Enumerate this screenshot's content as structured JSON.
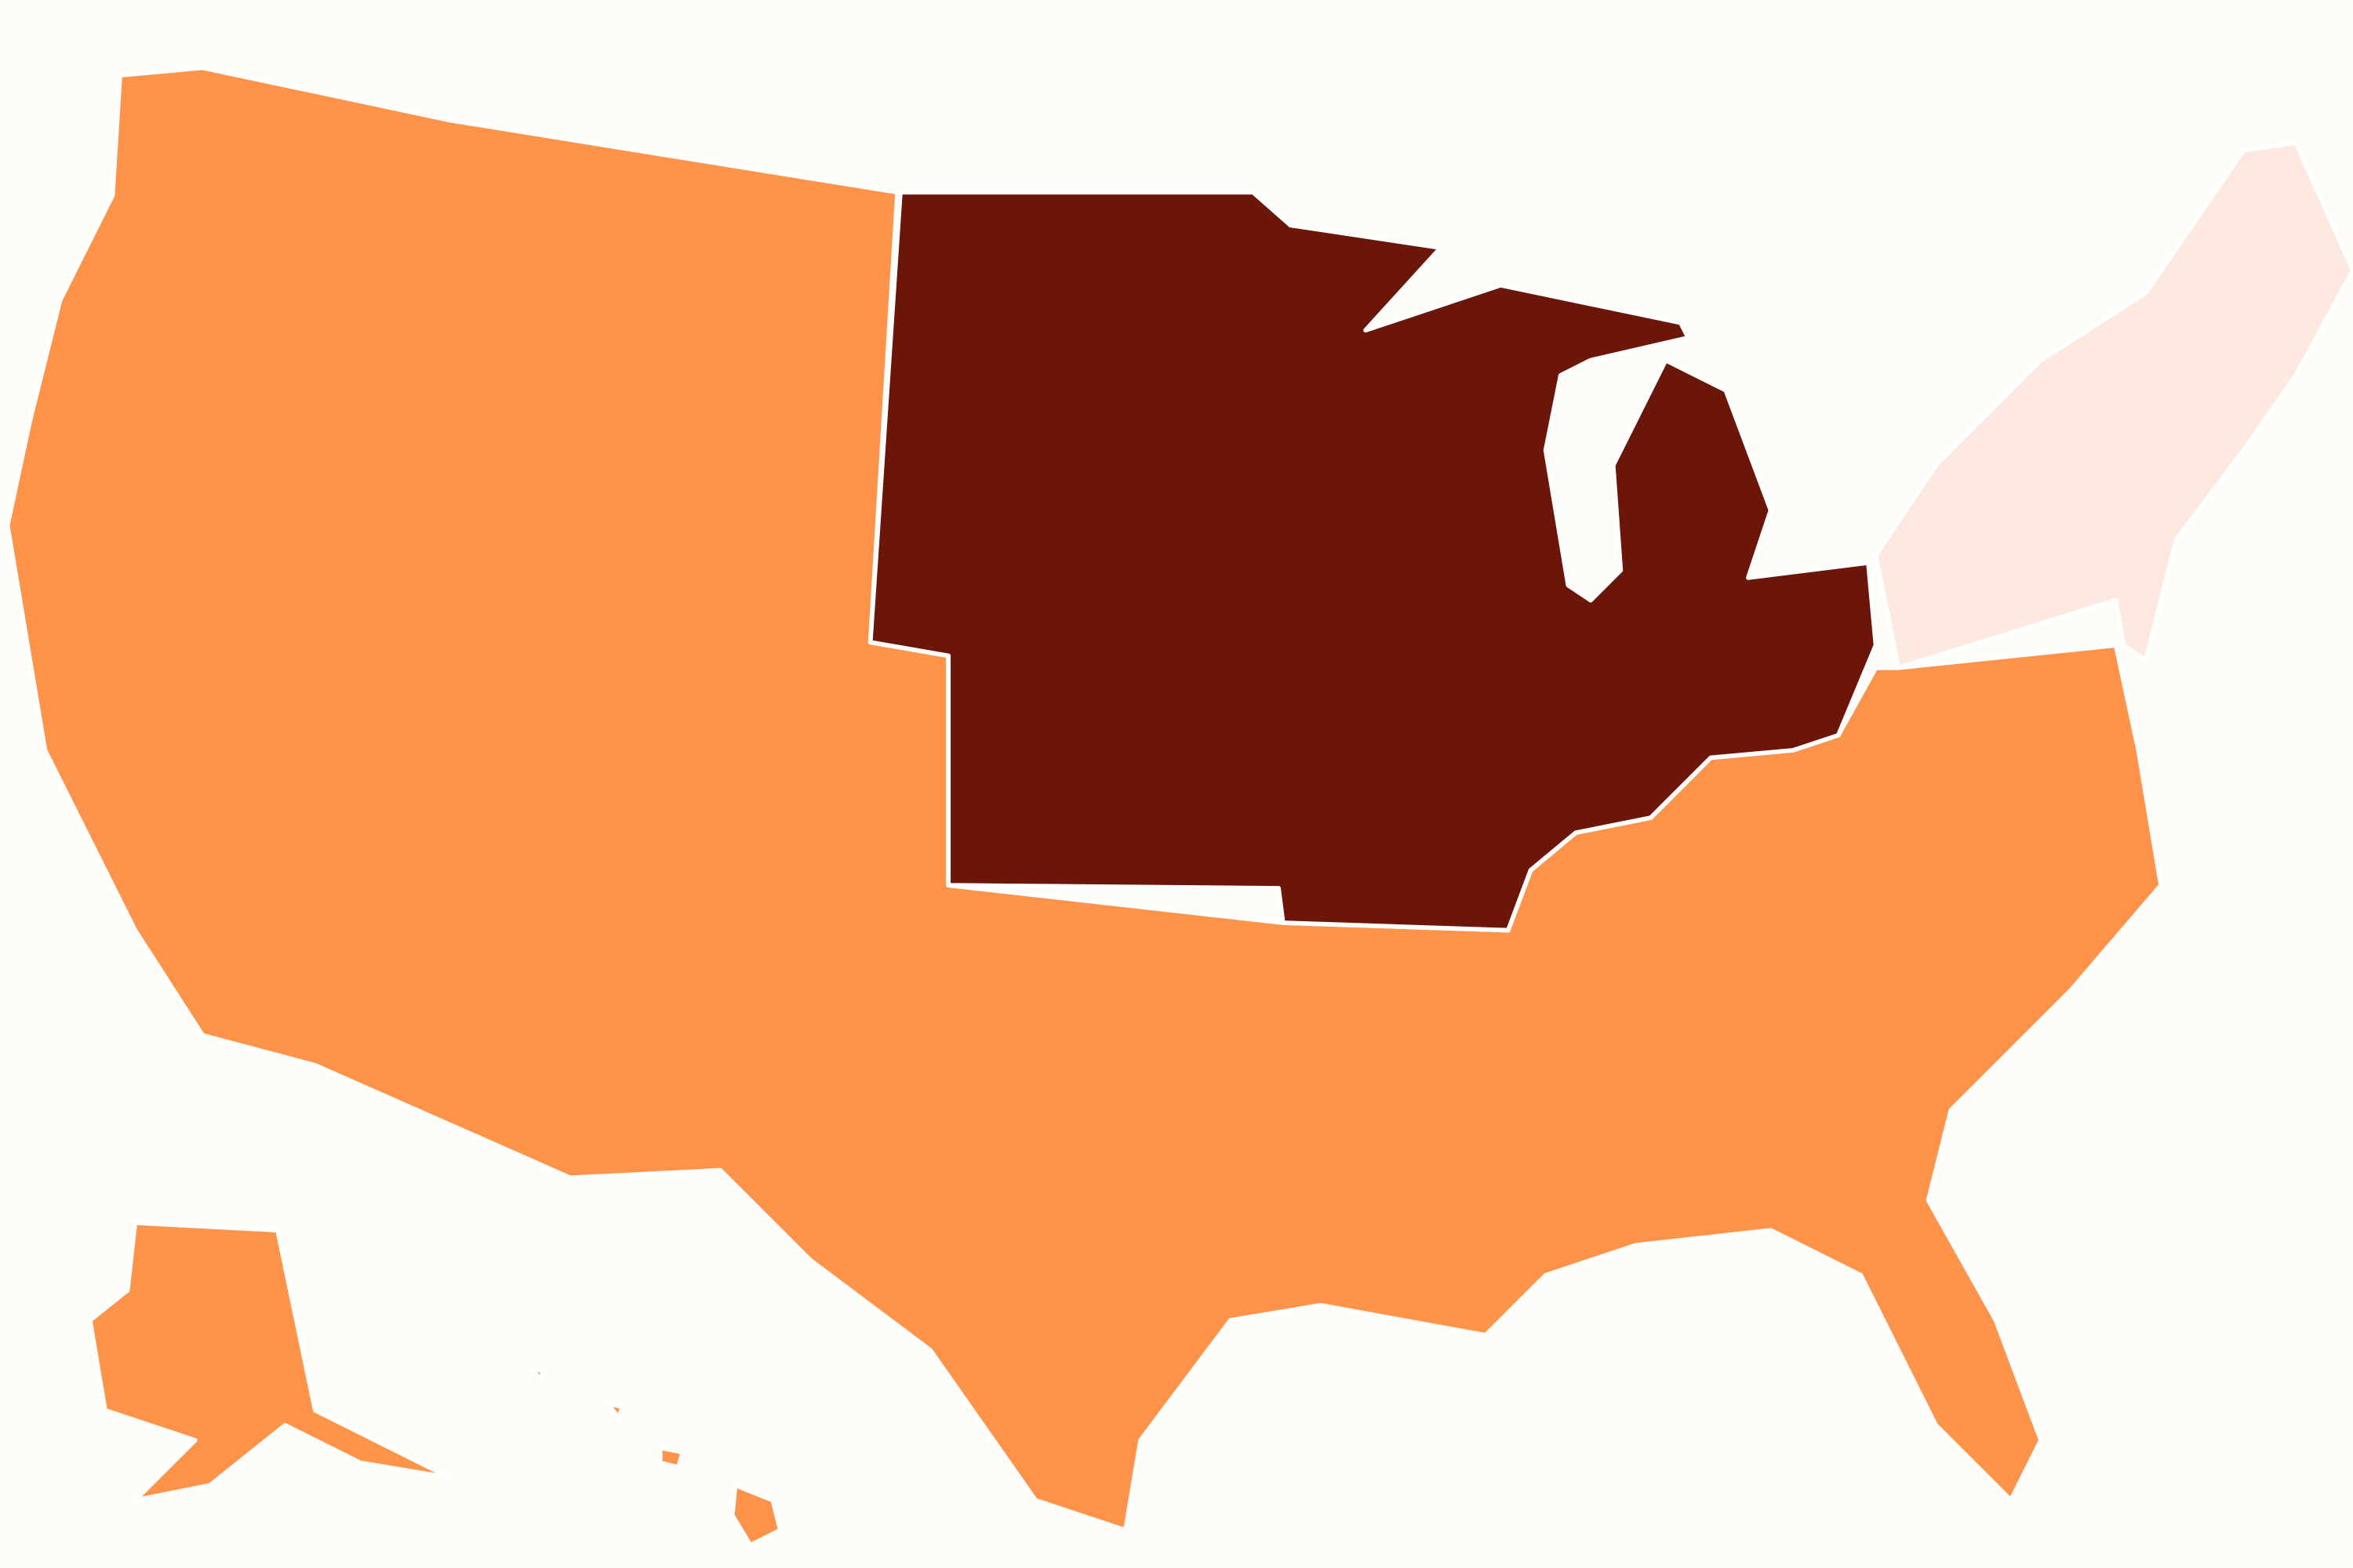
{
  "map": {
    "background": "#fdfcf7",
    "border": "#ffffff",
    "regions": [
      {
        "color": "#ff9349"
      },
      {
        "color": "#6b1609"
      },
      {
        "color": "#fde9e0"
      }
    ]
  }
}
